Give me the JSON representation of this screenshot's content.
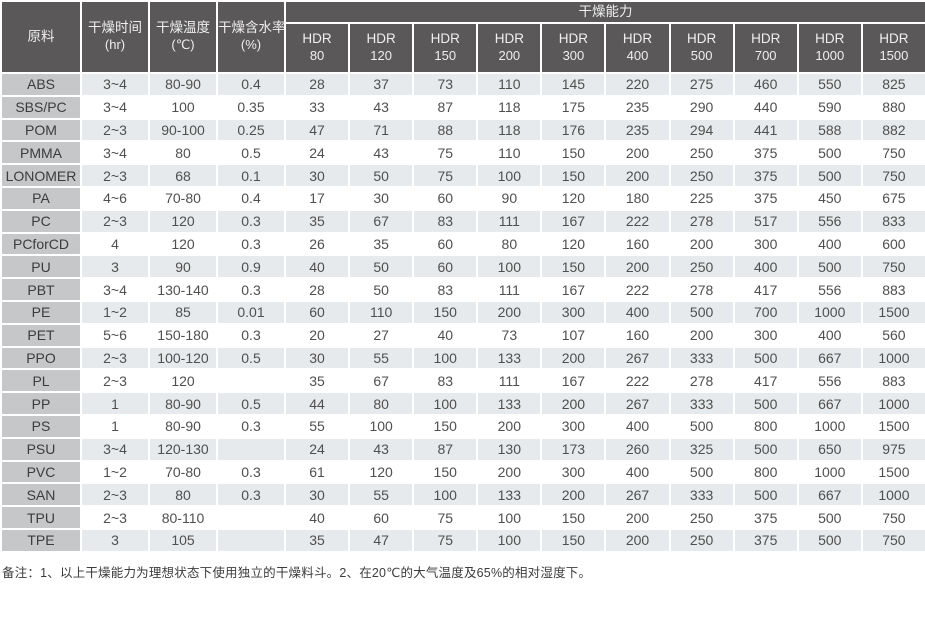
{
  "chart_data": {
    "type": "table",
    "title": "干燥能力",
    "headers": {
      "material": "原料",
      "time": "干燥时间",
      "time_unit": "(hr)",
      "temp": "干燥温度",
      "temp_unit": "(℃)",
      "moisture": "干燥含水率",
      "moisture_unit": "(%)",
      "capacity_group": "干燥能力",
      "hdr_label": "HDR",
      "hdr_sizes": [
        "80",
        "120",
        "150",
        "200",
        "300",
        "400",
        "500",
        "700",
        "1000",
        "1500"
      ]
    },
    "rows": [
      {
        "material": "ABS",
        "time": "3~4",
        "temp": "80-90",
        "moisture": "0.4",
        "capacities": [
          28,
          37,
          73,
          110,
          145,
          220,
          275,
          460,
          550,
          825
        ]
      },
      {
        "material": "SBS/PC",
        "time": "3~4",
        "temp": "100",
        "moisture": "0.35",
        "capacities": [
          33,
          43,
          87,
          118,
          175,
          235,
          290,
          440,
          590,
          880
        ]
      },
      {
        "material": "POM",
        "time": "2~3",
        "temp": "90-100",
        "moisture": "0.25",
        "capacities": [
          47,
          71,
          88,
          118,
          176,
          235,
          294,
          441,
          588,
          882
        ]
      },
      {
        "material": "PMMA",
        "time": "3~4",
        "temp": "80",
        "moisture": "0.5",
        "capacities": [
          24,
          43,
          75,
          110,
          150,
          200,
          250,
          375,
          500,
          750
        ]
      },
      {
        "material": "LONOMER",
        "time": "2~3",
        "temp": "68",
        "moisture": "0.1",
        "capacities": [
          30,
          50,
          75,
          100,
          150,
          200,
          250,
          375,
          500,
          750
        ]
      },
      {
        "material": "PA",
        "time": "4~6",
        "temp": "70-80",
        "moisture": "0.4",
        "capacities": [
          17,
          30,
          60,
          90,
          120,
          180,
          225,
          375,
          450,
          675
        ]
      },
      {
        "material": "PC",
        "time": "2~3",
        "temp": "120",
        "moisture": "0.3",
        "capacities": [
          35,
          67,
          83,
          111,
          167,
          222,
          278,
          517,
          556,
          833
        ]
      },
      {
        "material": "PCforCD",
        "time": "4",
        "temp": "120",
        "moisture": "0.3",
        "capacities": [
          26,
          35,
          60,
          80,
          120,
          160,
          200,
          300,
          400,
          600
        ]
      },
      {
        "material": "PU",
        "time": "3",
        "temp": "90",
        "moisture": "0.9",
        "capacities": [
          40,
          50,
          60,
          100,
          150,
          200,
          250,
          400,
          500,
          750
        ]
      },
      {
        "material": "PBT",
        "time": "3~4",
        "temp": "130-140",
        "moisture": "0.3",
        "capacities": [
          28,
          50,
          83,
          111,
          167,
          222,
          278,
          417,
          556,
          883
        ]
      },
      {
        "material": "PE",
        "time": "1~2",
        "temp": "85",
        "moisture": "0.01",
        "capacities": [
          60,
          110,
          150,
          200,
          300,
          400,
          500,
          700,
          1000,
          1500
        ]
      },
      {
        "material": "PET",
        "time": "5~6",
        "temp": "150-180",
        "moisture": "0.3",
        "capacities": [
          20,
          27,
          40,
          73,
          107,
          160,
          200,
          300,
          400,
          560
        ]
      },
      {
        "material": "PPO",
        "time": "2~3",
        "temp": "100-120",
        "moisture": "0.5",
        "capacities": [
          30,
          55,
          100,
          133,
          200,
          267,
          333,
          500,
          667,
          1000
        ]
      },
      {
        "material": "PL",
        "time": "2~3",
        "temp": "120",
        "moisture": "",
        "capacities": [
          35,
          67,
          83,
          111,
          167,
          222,
          278,
          417,
          556,
          883
        ]
      },
      {
        "material": "PP",
        "time": "1",
        "temp": "80-90",
        "moisture": "0.5",
        "capacities": [
          44,
          80,
          100,
          133,
          200,
          267,
          333,
          500,
          667,
          1000
        ]
      },
      {
        "material": "PS",
        "time": "1",
        "temp": "80-90",
        "moisture": "0.3",
        "capacities": [
          55,
          100,
          150,
          200,
          300,
          400,
          500,
          800,
          1000,
          1500
        ]
      },
      {
        "material": "PSU",
        "time": "3~4",
        "temp": "120-130",
        "moisture": "",
        "capacities": [
          24,
          43,
          87,
          130,
          173,
          260,
          325,
          500,
          650,
          975
        ]
      },
      {
        "material": "PVC",
        "time": "1~2",
        "temp": "70-80",
        "moisture": "0.3",
        "capacities": [
          61,
          120,
          150,
          200,
          300,
          400,
          500,
          800,
          1000,
          1500
        ]
      },
      {
        "material": "SAN",
        "time": "2~3",
        "temp": "80",
        "moisture": "0.3",
        "capacities": [
          30,
          55,
          100,
          133,
          200,
          267,
          333,
          500,
          667,
          1000
        ]
      },
      {
        "material": "TPU",
        "time": "2~3",
        "temp": "80-110",
        "moisture": "",
        "capacities": [
          40,
          60,
          75,
          100,
          150,
          200,
          250,
          375,
          500,
          750
        ]
      },
      {
        "material": "TPE",
        "time": "3",
        "temp": "105",
        "moisture": "",
        "capacities": [
          35,
          47,
          75,
          100,
          150,
          200,
          250,
          375,
          500,
          750
        ]
      }
    ]
  },
  "footnote": "备注：1、以上干燥能力为理想状态下使用独立的干燥料斗。2、在20℃的大气温度及65%的相对湿度下。",
  "colors": {
    "header_bg": "#5a5858",
    "header_text": "#efefef",
    "material_col_bg": "#c6c7c9",
    "stripe_row_bg": "#e7eaec",
    "white_row_bg": "#ffffff",
    "data_text": "#4f4f4f",
    "border": "#ffffff"
  }
}
